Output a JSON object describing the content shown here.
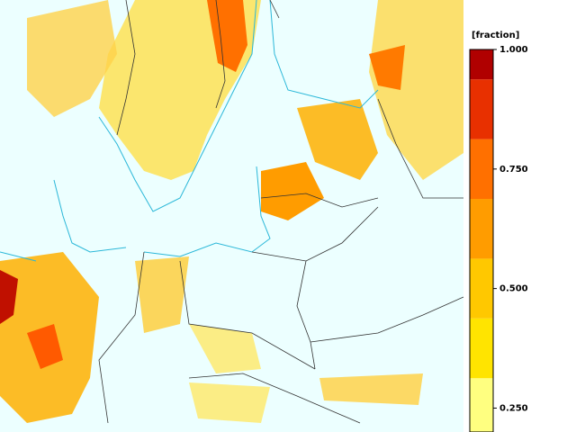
{
  "legend": {
    "title": "[fraction]",
    "range": [
      0.2,
      1.0
    ],
    "bounds": [
      0.2,
      0.3125,
      0.4375,
      0.5625,
      0.6875,
      0.8125,
      0.9375,
      1.0
    ],
    "colors": [
      "#ffff80",
      "#ffe400",
      "#ffc800",
      "#ff9c00",
      "#ff7000",
      "#e83000",
      "#b00000"
    ],
    "ticks": [
      {
        "value": 1.0,
        "label": "1.000"
      },
      {
        "value": 0.75,
        "label": "0.750"
      },
      {
        "value": 0.5,
        "label": "0.500"
      },
      {
        "value": 0.25,
        "label": "0.250"
      }
    ]
  }
}
